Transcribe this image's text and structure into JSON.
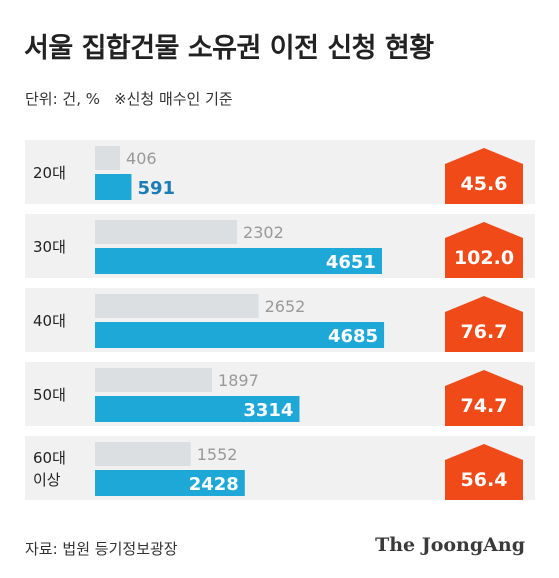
{
  "title": "서울 집합건물 소유권 이전 신청 현황",
  "unit_label": "단위: 건, %",
  "note": "※신청 매수인 기준",
  "source": "자료: 법원 등기정보광장",
  "brand": "The JoongAng",
  "colors": {
    "prior": "#dcdfe2",
    "current": "#1ea8d8",
    "change_badge": "#f04a18",
    "row_band": "#f1f1f1"
  },
  "chart_data": {
    "type": "bar",
    "orientation": "horizontal",
    "categories": [
      "20대",
      "30대",
      "40대",
      "50대",
      "60대\n이상"
    ],
    "series": [
      {
        "values": [
          406,
          2302,
          2652,
          1897,
          1552
        ]
      },
      {
        "values": [
          591,
          4651,
          4685,
          3314,
          2428
        ]
      }
    ],
    "change_percent": [
      "45.6",
      "102.0",
      "76.7",
      "74.7",
      "56.4"
    ],
    "xlim": [
      0,
      4700
    ]
  }
}
